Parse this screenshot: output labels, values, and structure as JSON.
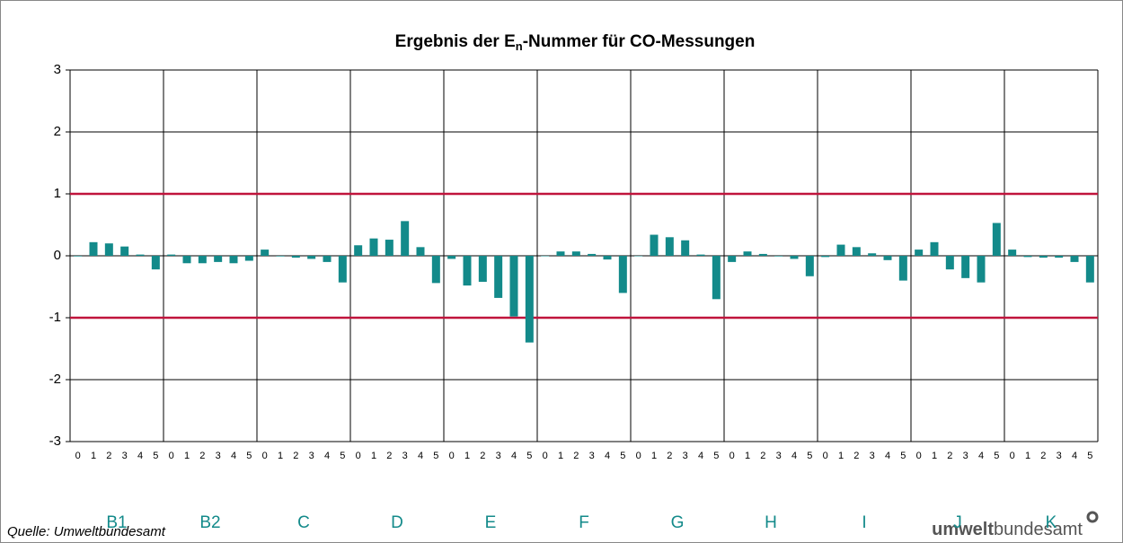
{
  "chart_data": {
    "type": "grouped-bar",
    "title": [
      "Ergebnis der E",
      "n",
      "-Nummer für CO-Messungen"
    ],
    "categories": [
      "B1",
      "B2",
      "C",
      "D",
      "E",
      "F",
      "G",
      "H",
      "I",
      "J",
      "K"
    ],
    "subcategories": [
      "0",
      "1",
      "2",
      "3",
      "4",
      "5"
    ],
    "values": [
      [
        -0.01,
        0.22,
        0.2,
        0.15,
        0.02,
        -0.22
      ],
      [
        0.02,
        -0.12,
        -0.12,
        -0.1,
        -0.12,
        -0.08
      ],
      [
        0.1,
        -0.01,
        -0.03,
        -0.05,
        -0.1,
        -0.43
      ],
      [
        0.17,
        0.28,
        0.26,
        0.56,
        0.14,
        -0.44
      ],
      [
        -0.05,
        -0.48,
        -0.42,
        -0.68,
        -0.98,
        -1.4
      ],
      [
        0,
        0.07,
        0.07,
        0.03,
        -0.06,
        -0.6
      ],
      [
        0,
        0.34,
        0.3,
        0.25,
        0.02,
        -0.7
      ],
      [
        -0.1,
        0.07,
        0.03,
        -0.01,
        -0.05,
        -0.33
      ],
      [
        -0.02,
        0.18,
        0.14,
        0.04,
        -0.07,
        -0.4
      ],
      [
        0.1,
        0.22,
        -0.22,
        -0.36,
        -0.43,
        0.53
      ],
      [
        0.1,
        -0.02,
        -0.03,
        -0.03,
        -0.1,
        -0.43
      ]
    ],
    "color": "#138a8a",
    "category_label_color": "#138a8a",
    "reference_lines": [
      1,
      -1
    ],
    "reference_color": "#c0143c",
    "ylim": [
      -3,
      3
    ],
    "yticks": [
      -3,
      -2,
      -1,
      0,
      1,
      2,
      3
    ],
    "grid": true,
    "source": "Quelle: Umweltbundesamt",
    "logo": [
      "umwelt",
      "bundesamt"
    ]
  }
}
